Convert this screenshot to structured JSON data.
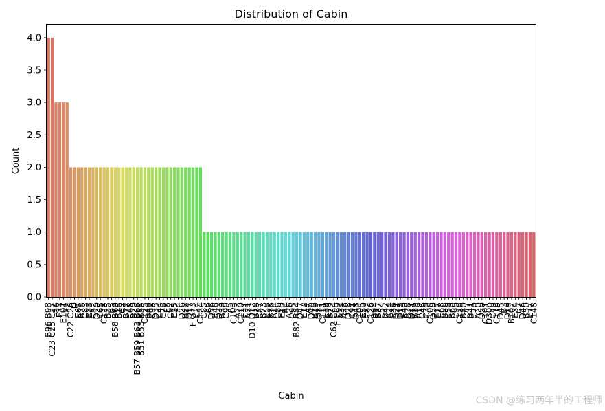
{
  "chart_data": {
    "type": "bar",
    "title": "Distribution of Cabin",
    "xlabel": "Cabin",
    "ylabel": "Count",
    "ylim": [
      0,
      4.2
    ],
    "yticks": [
      0.0,
      0.5,
      1.0,
      1.5,
      2.0,
      2.5,
      3.0,
      3.5,
      4.0
    ],
    "ytick_labels": [
      "0.0",
      "0.5",
      "1.0",
      "1.5",
      "2.0",
      "2.5",
      "3.0",
      "3.5",
      "4.0"
    ],
    "grid": false,
    "legend": "none",
    "categories": [
      "B96 B98",
      "C23 C25 C27",
      "G6",
      "F33",
      "E101",
      "F2",
      "C22 C26",
      "D",
      "E67",
      "B28",
      "C83",
      "E33",
      "C52",
      "D20",
      "C65",
      "C123",
      "B35",
      "B5",
      "B58 B60",
      "B18",
      "C2",
      "B77",
      "C68",
      "B20",
      "B57 B59 B63 B66",
      "B51 B53 B55",
      "C125",
      "B49",
      "C93",
      "D35",
      "E44",
      "C78",
      "E8",
      "C92",
      "E25",
      "F4",
      "D26",
      "B22",
      "D17",
      "F G73",
      "E24",
      "C124",
      "C85",
      "A6",
      "D56",
      "E46",
      "D33",
      "B30",
      "C99",
      "A5",
      "C103",
      "A23",
      "C110",
      "E31",
      "A31",
      "D10 D12",
      "B78",
      "C87",
      "B73",
      "E58",
      "B36",
      "A14",
      "C86",
      "E10",
      "B4",
      "A26",
      "C95",
      "B82 B84",
      "D47",
      "E12",
      "A7",
      "D49",
      "B19",
      "D37",
      "C111",
      "E38",
      "B79",
      "C62 C64",
      "F E69",
      "A34",
      "A36",
      "D28",
      "C91",
      "D48",
      "C104",
      "E50",
      "C82",
      "C126",
      "B94",
      "B37",
      "C54",
      "B42",
      "A24",
      "E36",
      "D21",
      "D15",
      "E40",
      "B38",
      "D11",
      "B39",
      "A19",
      "C46",
      "C30",
      "C106",
      "D30",
      "E17",
      "E68",
      "B86",
      "C50",
      "B69",
      "C90",
      "C128",
      "B80",
      "C47",
      "B41",
      "C70",
      "A20",
      "D50",
      "C101",
      "D30b",
      "C49",
      "C118",
      "D45",
      "B3",
      "D19",
      "B102",
      "E34",
      "C7",
      "D46",
      "B50",
      "E77",
      "C148"
    ],
    "values": [
      4,
      4,
      3,
      3,
      3,
      3,
      2,
      2,
      2,
      2,
      2,
      2,
      2,
      2,
      2,
      2,
      2,
      2,
      2,
      2,
      2,
      2,
      2,
      2,
      2,
      2,
      2,
      2,
      2,
      2,
      2,
      2,
      2,
      2,
      2,
      2,
      2,
      2,
      2,
      2,
      2,
      2,
      1,
      1,
      1,
      1,
      1,
      1,
      1,
      1,
      1,
      1,
      1,
      1,
      1,
      1,
      1,
      1,
      1,
      1,
      1,
      1,
      1,
      1,
      1,
      1,
      1,
      1,
      1,
      1,
      1,
      1,
      1,
      1,
      1,
      1,
      1,
      1,
      1,
      1,
      1,
      1,
      1,
      1,
      1,
      1,
      1,
      1,
      1,
      1,
      1,
      1,
      1,
      1,
      1,
      1,
      1,
      1,
      1,
      1,
      1,
      1,
      1,
      1,
      1,
      1,
      1,
      1,
      1,
      1,
      1,
      1,
      1,
      1,
      1,
      1,
      1,
      1,
      1,
      1,
      1,
      1,
      1,
      1,
      1,
      1,
      1,
      1,
      1,
      1,
      1,
      1
    ],
    "palette": "husl"
  },
  "watermark": "CSDN @练习两年半的工程师"
}
